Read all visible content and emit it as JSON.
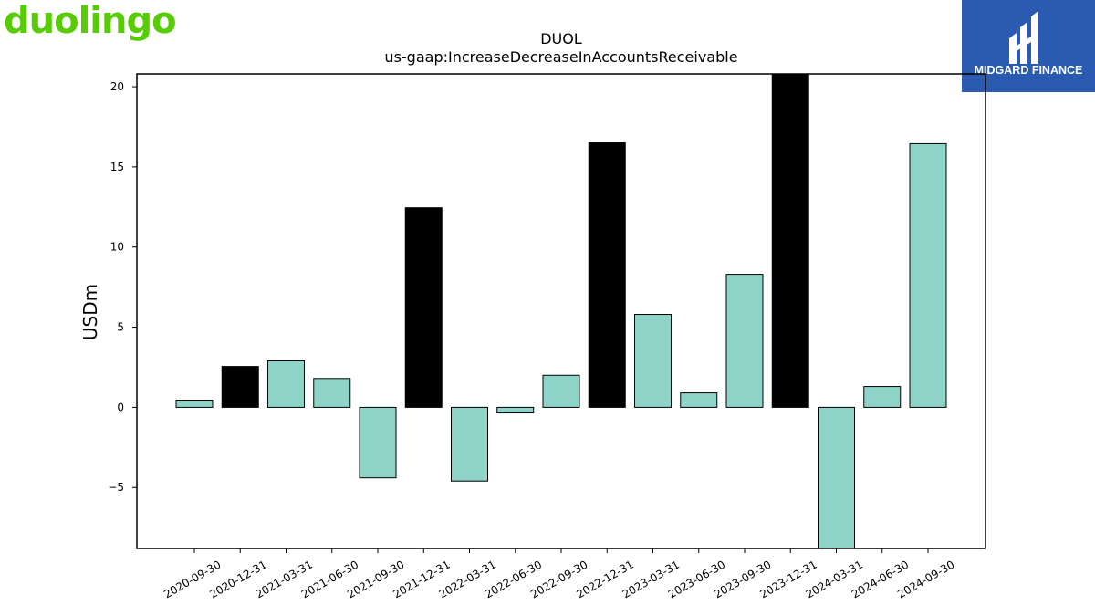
{
  "logos": {
    "left_brand": "duolingo",
    "left_brand_color": "#58cc02",
    "right_brand": "MIDGARD FINANCE",
    "right_brand_bg": "#2a5bb0"
  },
  "chart_data": {
    "type": "bar",
    "title": "DUOL",
    "subtitle": "us-gaap:IncreaseDecreaseInAccountsReceivable",
    "ylabel": "USDm",
    "xlabel": "",
    "ylim": [
      -8.8,
      20.8
    ],
    "yticks": [
      -5,
      0,
      5,
      10,
      15,
      20
    ],
    "ytick_labels": [
      "−5",
      "0",
      "5",
      "10",
      "15",
      "20"
    ],
    "grid": false,
    "colors": {
      "quarterly": "#8dd3c7",
      "annual": "#000000"
    },
    "categories": [
      "2020-09-30",
      "2020-12-31",
      "2021-03-31",
      "2021-06-30",
      "2021-09-30",
      "2021-12-31",
      "2022-03-31",
      "2022-06-30",
      "2022-09-30",
      "2022-12-31",
      "2023-03-31",
      "2023-06-30",
      "2023-09-30",
      "2023-12-31",
      "2024-03-31",
      "2024-06-30",
      "2024-09-30"
    ],
    "values": [
      0.45,
      2.55,
      2.9,
      1.8,
      -4.4,
      12.45,
      -4.6,
      -0.35,
      2.0,
      16.5,
      5.8,
      0.9,
      8.3,
      20.8,
      -8.8,
      1.3,
      16.45
    ],
    "highlight": [
      false,
      true,
      false,
      false,
      false,
      true,
      false,
      false,
      false,
      true,
      false,
      false,
      false,
      true,
      false,
      false,
      false
    ]
  }
}
